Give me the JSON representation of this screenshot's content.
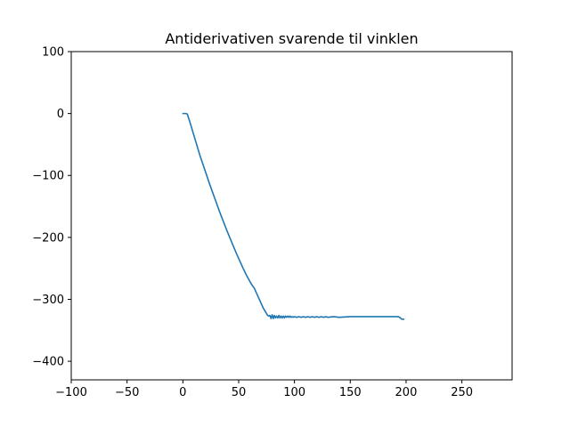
{
  "chart_data": {
    "type": "line",
    "title": "Antiderivativen svarende til vinklen",
    "xlabel": "",
    "ylabel": "",
    "xlim": [
      -100,
      295
    ],
    "ylim": [
      -430,
      100
    ],
    "xticks": [
      -100,
      -50,
      0,
      50,
      100,
      150,
      200,
      250
    ],
    "yticks": [
      100,
      0,
      -100,
      -200,
      -300,
      -400
    ],
    "xtick_labels": [
      "−100",
      "−50",
      "0",
      "50",
      "100",
      "150",
      "200",
      "250"
    ],
    "ytick_labels": [
      "100",
      "0",
      "−100",
      "−200",
      "−300",
      "−400"
    ],
    "grid": false,
    "color": "#1f77b4",
    "series": [
      {
        "x": [
          0,
          3,
          4,
          6,
          8,
          10,
          12,
          15,
          18,
          21,
          24,
          27,
          30,
          33,
          36,
          39,
          42,
          45,
          48,
          51,
          54,
          57,
          60,
          62,
          64,
          65,
          66,
          67,
          68,
          69,
          70,
          71,
          72,
          73,
          74,
          75,
          76,
          77,
          78,
          79,
          80,
          81,
          82,
          83,
          84,
          85,
          86,
          87,
          88,
          89,
          90,
          91,
          92,
          93,
          94,
          95,
          96,
          97,
          98,
          99,
          100,
          102,
          104,
          106,
          108,
          110,
          112,
          114,
          116,
          118,
          120,
          122,
          124,
          126,
          128,
          130,
          135,
          140,
          150,
          160,
          170,
          180,
          190,
          193,
          195,
          196,
          198
        ],
        "y": [
          0,
          0,
          -1,
          -12,
          -24,
          -36,
          -48,
          -66,
          -82,
          -98,
          -114,
          -129,
          -144,
          -159,
          -173,
          -187,
          -200,
          -213,
          -226,
          -238,
          -250,
          -261,
          -271,
          -277,
          -282,
          -286,
          -290,
          -294,
          -298,
          -302,
          -306,
          -310,
          -314,
          -317,
          -320,
          -323,
          -326,
          -327,
          -326,
          -331,
          -325,
          -331,
          -326,
          -330,
          -327,
          -330,
          -326,
          -330,
          -327,
          -330,
          -327,
          -330,
          -327,
          -329,
          -327,
          -329,
          -327,
          -329,
          -328,
          -329,
          -328,
          -329,
          -328,
          -329,
          -328,
          -329,
          -328,
          -329,
          -328,
          -329,
          -328,
          -329,
          -328,
          -329,
          -328,
          -329,
          -328,
          -329,
          -328,
          -328,
          -328,
          -328,
          -328,
          -328,
          -330,
          -332,
          -332
        ]
      }
    ]
  }
}
